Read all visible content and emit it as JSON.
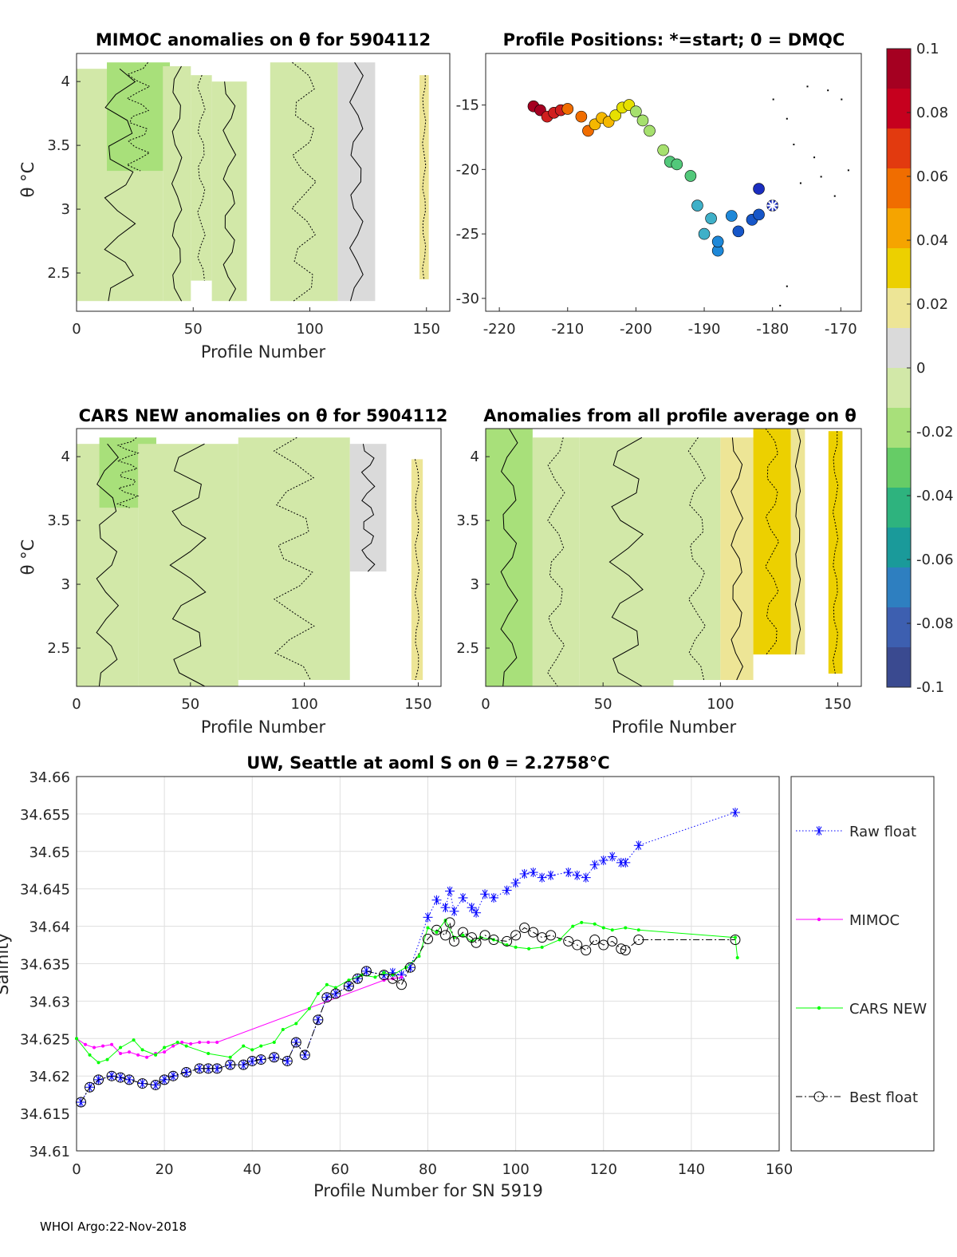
{
  "footer": "WHOI Argo:22-Nov-2018",
  "colorbar": {
    "ticks": [
      "0.1",
      "0.08",
      "0.06",
      "0.04",
      "0.02",
      "0",
      "-0.02",
      "-0.04",
      "-0.06",
      "-0.08",
      "-0.1"
    ],
    "colors": [
      "#a50021",
      "#c6001e",
      "#e23a0f",
      "#f06d00",
      "#f5a400",
      "#ecd000",
      "#ede596",
      "#dadada",
      "#d2e8a8",
      "#a8e07a",
      "#66cc66",
      "#2eb37e",
      "#1a9a9a",
      "#2e7fc0",
      "#3d5fb0",
      "#3a4a90"
    ]
  },
  "panels": {
    "mimoc": {
      "title": "MIMOC anomalies on θ  for 5904112",
      "xlabel": "Profile Number",
      "ylabel": "θ °C",
      "xticks": [
        "0",
        "50",
        "100",
        "150"
      ],
      "yticks": [
        "4",
        "3.5",
        "3",
        "2.5"
      ]
    },
    "positions": {
      "title": "Profile Positions: *=start; 0 = DMQC",
      "xticks": [
        "-220",
        "-210",
        "-200",
        "-190",
        "-180",
        "-170"
      ],
      "yticks": [
        "-15",
        "-20",
        "-25",
        "-30"
      ]
    },
    "cars": {
      "title": "CARS NEW anomalies on θ for 5904112",
      "xlabel": "Profile Number",
      "ylabel": "θ °C",
      "xticks": [
        "0",
        "50",
        "100",
        "150"
      ],
      "yticks": [
        "4",
        "3.5",
        "3",
        "2.5"
      ]
    },
    "allavg": {
      "title": "Anomalies from all profile average on θ",
      "xlabel": "Profile Number",
      "ylabel": "θ °C",
      "xticks": [
        "0",
        "50",
        "100",
        "150"
      ],
      "yticks": [
        "4",
        "3.5",
        "3",
        "2.5"
      ]
    }
  },
  "chart_data": [
    {
      "type": "heatmap",
      "title": "MIMOC anomalies on θ  for 5904112",
      "xlabel": "Profile Number",
      "ylabel": "θ °C",
      "xlim": [
        0,
        160
      ],
      "ylim": [
        2.2,
        4.22
      ],
      "columns": [
        {
          "x0": 0,
          "x1": 37,
          "ytop": 4.1,
          "ybot": 2.28,
          "anom": -0.005
        },
        {
          "x0": 13,
          "x1": 40,
          "ytop": 4.15,
          "ybot": 3.3,
          "anom": -0.016
        },
        {
          "x0": 37,
          "x1": 49,
          "ytop": 4.12,
          "ybot": 2.28,
          "anom": -0.003
        },
        {
          "x0": 49,
          "x1": 58,
          "ytop": 4.05,
          "ybot": 2.44,
          "anom": 0.0
        },
        {
          "x0": 58,
          "x1": 73,
          "ytop": 4.0,
          "ybot": 2.28,
          "anom": 0.0
        },
        {
          "x0": 83,
          "x1": 112,
          "ytop": 4.15,
          "ybot": 2.28,
          "anom": 0.0
        },
        {
          "x0": 112,
          "x1": 128,
          "ytop": 4.15,
          "ybot": 2.28,
          "anom": 0.012
        },
        {
          "x0": 147,
          "x1": 151,
          "ytop": 4.05,
          "ybot": 2.45,
          "anom": 0.015
        }
      ]
    },
    {
      "type": "scatter",
      "title": "Profile Positions: *=start; 0 = DMQC",
      "xlim": [
        -222,
        -167
      ],
      "ylim": [
        -31,
        -11
      ],
      "x": [
        -180,
        -182,
        -182,
        -183,
        -185,
        -186,
        -188,
        -188,
        -189,
        -190,
        -191,
        -192,
        -194,
        -195,
        -196,
        -198,
        -199,
        -200,
        -201,
        -202,
        -203,
        -204,
        -205,
        -206,
        -207,
        -208,
        -210,
        -211,
        -212,
        -213,
        -214,
        -215
      ],
      "y": [
        -22.8,
        -21.5,
        -23.5,
        -23.9,
        -24.8,
        -23.6,
        -25.6,
        -26.3,
        -23.8,
        -25.0,
        -22.8,
        -20.5,
        -19.6,
        -19.4,
        -18.5,
        -17.0,
        -16.2,
        -15.5,
        -15.0,
        -15.2,
        -15.8,
        -16.3,
        -16.0,
        -16.5,
        -17.0,
        -15.9,
        -15.3,
        -15.4,
        -15.6,
        -15.9,
        -15.4,
        -15.1
      ],
      "start": [
        -180,
        -22.8
      ]
    },
    {
      "type": "heatmap",
      "title": "CARS NEW anomalies on θ for 5904112",
      "xlabel": "Profile Number",
      "ylabel": "θ °C",
      "xlim": [
        0,
        160
      ],
      "ylim": [
        2.2,
        4.22
      ],
      "columns": [
        {
          "x0": 0,
          "x1": 27,
          "ytop": 4.1,
          "ybot": 2.2,
          "anom": -0.004
        },
        {
          "x0": 10,
          "x1": 35,
          "ytop": 4.15,
          "ybot": 3.6,
          "anom": -0.015
        },
        {
          "x0": 27,
          "x1": 71,
          "ytop": 4.1,
          "ybot": 2.2,
          "anom": -0.002
        },
        {
          "x0": 71,
          "x1": 120,
          "ytop": 4.15,
          "ybot": 2.25,
          "anom": 0.0
        },
        {
          "x0": 120,
          "x1": 136,
          "ytop": 4.1,
          "ybot": 3.1,
          "anom": 0.01
        },
        {
          "x0": 147,
          "x1": 152,
          "ytop": 3.98,
          "ybot": 2.25,
          "anom": 0.015
        }
      ]
    },
    {
      "type": "heatmap",
      "title": "Anomalies from all profile average on θ",
      "xlabel": "Profile Number",
      "ylabel": "θ °C",
      "xlim": [
        0,
        160
      ],
      "ylim": [
        2.2,
        4.22
      ],
      "columns": [
        {
          "x0": 0,
          "x1": 20,
          "ytop": 4.22,
          "ybot": 2.2,
          "anom": -0.02
        },
        {
          "x0": 20,
          "x1": 40,
          "ytop": 4.15,
          "ybot": 2.2,
          "anom": -0.012
        },
        {
          "x0": 40,
          "x1": 80,
          "ytop": 4.15,
          "ybot": 2.2,
          "anom": -0.007
        },
        {
          "x0": 80,
          "x1": 100,
          "ytop": 4.15,
          "ybot": 2.25,
          "anom": 0.0
        },
        {
          "x0": 100,
          "x1": 114,
          "ytop": 4.15,
          "ybot": 2.25,
          "anom": 0.015
        },
        {
          "x0": 114,
          "x1": 130,
          "ytop": 4.22,
          "ybot": 2.45,
          "anom": 0.028
        },
        {
          "x0": 130,
          "x1": 136,
          "ytop": 4.22,
          "ybot": 2.45,
          "anom": 0.018
        },
        {
          "x0": 146,
          "x1": 152,
          "ytop": 4.2,
          "ybot": 2.3,
          "anom": 0.032
        }
      ]
    },
    {
      "type": "line",
      "title": "UW, Seattle at aoml S on θ = 2.2758°C",
      "xlabel": "Profile Number for SN 5919",
      "ylabel": "Salinity",
      "xlim": [
        0,
        160
      ],
      "ylim": [
        34.61,
        34.66
      ],
      "xticks": [
        "0",
        "20",
        "40",
        "60",
        "80",
        "100",
        "120",
        "140",
        "160"
      ],
      "yticks": [
        "34.66",
        "34.655",
        "34.65",
        "34.645",
        "34.64",
        "34.635",
        "34.63",
        "34.625",
        "34.62",
        "34.615",
        "34.61"
      ],
      "legend_position": "outside-right",
      "series": [
        {
          "name": "Raw float",
          "color": "#0000ff",
          "marker": "*",
          "line": "dotted",
          "x": [
            1,
            3,
            5,
            8,
            10,
            12,
            15,
            18,
            20,
            22,
            25,
            28,
            30,
            32,
            35,
            38,
            40,
            42,
            45,
            48,
            50,
            52,
            55,
            57,
            59,
            62,
            64,
            66,
            70,
            72,
            74,
            76,
            80,
            82,
            84,
            85,
            86,
            88,
            90,
            91,
            93,
            95,
            98,
            100,
            102,
            104,
            106,
            108,
            112,
            114,
            116,
            118,
            120,
            122,
            124,
            125,
            128,
            150
          ],
          "y": [
            34.6165,
            34.6185,
            34.6195,
            34.62,
            34.6198,
            34.6195,
            34.619,
            34.6188,
            34.6195,
            34.62,
            34.6205,
            34.621,
            34.621,
            34.621,
            34.6215,
            34.6215,
            34.622,
            34.6222,
            34.6225,
            34.622,
            34.6245,
            34.6228,
            34.6275,
            34.6305,
            34.631,
            34.632,
            34.633,
            34.634,
            34.6335,
            34.6338,
            34.6335,
            34.6345,
            34.6412,
            34.6435,
            34.6425,
            34.6447,
            34.642,
            34.6438,
            34.6425,
            34.6418,
            34.6443,
            34.6438,
            34.6448,
            34.6458,
            34.647,
            34.6472,
            34.6465,
            34.6468,
            34.6472,
            34.6468,
            34.6465,
            34.6482,
            34.6488,
            34.6493,
            34.6485,
            34.6485,
            34.6508,
            34.6552
          ]
        },
        {
          "name": "MIMOC",
          "color": "#ff00ff",
          "marker": ".",
          "line": "solid",
          "x": [
            0,
            2,
            4,
            6,
            8,
            10,
            12,
            14,
            16,
            18,
            20,
            22,
            24,
            26,
            28,
            30,
            32,
            70,
            72,
            74
          ],
          "y": [
            34.625,
            34.6242,
            34.6238,
            34.624,
            34.6242,
            34.623,
            34.6232,
            34.6228,
            34.6225,
            34.623,
            34.6232,
            34.624,
            34.6245,
            34.6243,
            34.6245,
            34.6245,
            34.6245,
            34.6328,
            34.633,
            34.6332
          ]
        },
        {
          "name": "CARS NEW",
          "color": "#00ff00",
          "marker": ".",
          "line": "solid",
          "x": [
            0,
            3,
            5,
            7,
            10,
            13,
            15,
            18,
            20,
            23,
            25,
            30,
            35,
            38,
            40,
            42,
            45,
            47,
            50,
            53,
            55,
            57,
            59,
            62,
            65,
            68,
            70,
            72,
            75,
            78,
            80,
            82,
            84,
            86,
            88,
            90,
            92,
            95,
            98,
            100,
            103,
            106,
            110,
            113,
            115,
            118,
            120,
            122,
            125,
            128,
            150,
            150.5
          ],
          "y": [
            34.625,
            34.6228,
            34.6218,
            34.6222,
            34.6238,
            34.6248,
            34.6235,
            34.6228,
            34.6238,
            34.6245,
            34.624,
            34.623,
            34.6225,
            34.624,
            34.6235,
            34.624,
            34.6245,
            34.6262,
            34.627,
            34.629,
            34.631,
            34.6322,
            34.6318,
            34.6328,
            34.6335,
            34.6332,
            34.6338,
            34.6335,
            34.6345,
            34.636,
            34.6398,
            34.6392,
            34.6408,
            34.6385,
            34.6388,
            34.638,
            34.6385,
            34.6382,
            34.6375,
            34.6372,
            34.637,
            34.6372,
            34.6382,
            34.64,
            34.6405,
            34.6403,
            34.6398,
            34.6395,
            34.6398,
            34.6395,
            34.6385,
            34.6358
          ]
        },
        {
          "name": "Best float",
          "color": "#000000",
          "marker": "o",
          "line": "dashdot",
          "x": [
            1,
            3,
            5,
            8,
            10,
            12,
            15,
            18,
            20,
            22,
            25,
            28,
            30,
            32,
            35,
            38,
            40,
            42,
            45,
            48,
            50,
            52,
            55,
            57,
            59,
            62,
            64,
            66,
            70,
            72,
            74,
            76,
            80,
            82,
            84,
            85,
            86,
            88,
            90,
            91,
            93,
            95,
            98,
            100,
            102,
            104,
            106,
            108,
            112,
            114,
            116,
            118,
            120,
            122,
            124,
            125,
            128,
            150
          ],
          "y": [
            34.6165,
            34.6185,
            34.6195,
            34.62,
            34.6198,
            34.6195,
            34.619,
            34.6188,
            34.6195,
            34.62,
            34.6205,
            34.621,
            34.621,
            34.621,
            34.6215,
            34.6215,
            34.622,
            34.6222,
            34.6225,
            34.622,
            34.6245,
            34.6228,
            34.6275,
            34.6305,
            34.631,
            34.632,
            34.633,
            34.634,
            34.6335,
            34.633,
            34.6322,
            34.6345,
            34.6383,
            34.6395,
            34.6388,
            34.6405,
            34.638,
            34.6392,
            34.6385,
            34.6378,
            34.6388,
            34.6382,
            34.638,
            34.6388,
            34.6398,
            34.6392,
            34.6385,
            34.6388,
            34.638,
            34.6375,
            34.6368,
            34.6382,
            34.6375,
            34.638,
            34.637,
            34.6368,
            34.6382,
            34.6382
          ]
        }
      ]
    }
  ]
}
